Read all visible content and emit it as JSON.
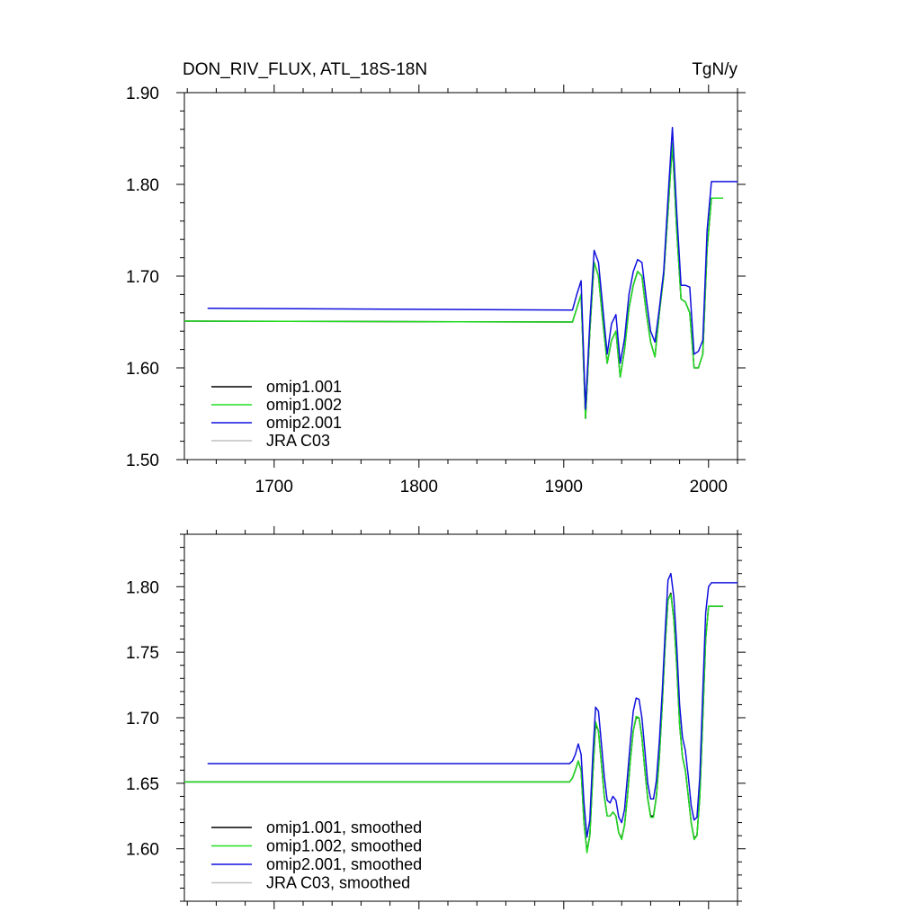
{
  "header": {
    "title": "DON_RIV_FLUX, ATL_18S-18N",
    "units": "TgN/y"
  },
  "colors": {
    "omip1_001": "#000000",
    "omip1_002": "#22dd22",
    "omip2_001": "#1010dd",
    "jra_c03": "#c0c0c0"
  },
  "chart_data": [
    {
      "type": "line",
      "title": "DON_RIV_FLUX, ATL_18S-18N",
      "units": "TgN/y",
      "xlim": [
        1638,
        2020
      ],
      "ylim": [
        1.5,
        1.9
      ],
      "xticks": [
        1700,
        1800,
        1900,
        2000
      ],
      "xtick_labels": [
        "1700",
        "1800",
        "1900",
        "2000"
      ],
      "yticks": [
        1.5,
        1.6,
        1.7,
        1.8,
        1.9
      ],
      "ytick_labels": [
        "1.50",
        "1.60",
        "1.70",
        "1.80",
        "1.90"
      ],
      "grid": false,
      "legend_position": "bottom-left",
      "series": [
        {
          "name": "omip1.001",
          "color": "#000000",
          "x": [
            1638,
            1906,
            1909,
            1912,
            1915,
            1918,
            1921,
            1924,
            1927,
            1930,
            1933,
            1936,
            1939,
            1942,
            1945,
            1948,
            1951,
            1954,
            1957,
            1960,
            1963,
            1966,
            1969,
            1972,
            1975,
            1978,
            1981,
            1984,
            1987,
            1990,
            1993,
            1996,
            1999,
            2002,
            2010
          ],
          "y": [
            1.651,
            1.65,
            1.665,
            1.68,
            1.545,
            1.64,
            1.715,
            1.7,
            1.65,
            1.605,
            1.63,
            1.64,
            1.59,
            1.62,
            1.665,
            1.69,
            1.705,
            1.7,
            1.66,
            1.628,
            1.612,
            1.66,
            1.7,
            1.77,
            1.845,
            1.75,
            1.675,
            1.672,
            1.66,
            1.6,
            1.6,
            1.615,
            1.73,
            1.785,
            1.785
          ]
        },
        {
          "name": "omip1.002",
          "color": "#22dd22",
          "x": [
            1638,
            1906,
            1909,
            1912,
            1915,
            1918,
            1921,
            1924,
            1927,
            1930,
            1933,
            1936,
            1939,
            1942,
            1945,
            1948,
            1951,
            1954,
            1957,
            1960,
            1963,
            1966,
            1969,
            1972,
            1975,
            1978,
            1981,
            1984,
            1987,
            1990,
            1993,
            1996,
            1999,
            2002,
            2010
          ],
          "y": [
            1.651,
            1.65,
            1.665,
            1.68,
            1.545,
            1.64,
            1.715,
            1.7,
            1.65,
            1.605,
            1.63,
            1.64,
            1.59,
            1.62,
            1.665,
            1.69,
            1.705,
            1.7,
            1.66,
            1.628,
            1.612,
            1.66,
            1.7,
            1.77,
            1.845,
            1.75,
            1.675,
            1.672,
            1.66,
            1.6,
            1.6,
            1.615,
            1.73,
            1.785,
            1.785
          ]
        },
        {
          "name": "omip2.001",
          "color": "#1010dd",
          "x": [
            1654,
            1906,
            1909,
            1912,
            1915,
            1918,
            1921,
            1924,
            1927,
            1930,
            1933,
            1936,
            1939,
            1942,
            1945,
            1948,
            1951,
            1954,
            1957,
            1960,
            1963,
            1966,
            1969,
            1972,
            1975,
            1978,
            1981,
            1984,
            1987,
            1990,
            1993,
            1996,
            1999,
            2002,
            2020
          ],
          "y": [
            1.665,
            1.663,
            1.68,
            1.695,
            1.555,
            1.65,
            1.728,
            1.715,
            1.665,
            1.615,
            1.648,
            1.658,
            1.605,
            1.632,
            1.68,
            1.705,
            1.718,
            1.715,
            1.675,
            1.64,
            1.628,
            1.665,
            1.705,
            1.785,
            1.862,
            1.77,
            1.69,
            1.69,
            1.688,
            1.615,
            1.618,
            1.63,
            1.75,
            1.803,
            1.803
          ]
        },
        {
          "name": "JRA C03",
          "color": "#c0c0c0",
          "x": [],
          "y": []
        }
      ]
    },
    {
      "type": "line",
      "title": "",
      "xlim": [
        1638,
        2020
      ],
      "ylim": [
        1.56,
        1.84
      ],
      "xticks": [
        1700,
        1800,
        1900,
        2000
      ],
      "xtick_labels": [],
      "yticks": [
        1.6,
        1.65,
        1.7,
        1.75,
        1.8
      ],
      "ytick_labels": [
        "1.60",
        "1.65",
        "1.70",
        "1.75",
        "1.80"
      ],
      "grid": false,
      "legend_position": "bottom-left",
      "series": [
        {
          "name": "omip1.001, smoothed",
          "color": "#000000",
          "x": [
            1638,
            1904,
            1906,
            1908,
            1910,
            1912,
            1914,
            1916,
            1918,
            1920,
            1922,
            1924,
            1926,
            1928,
            1930,
            1932,
            1934,
            1936,
            1938,
            1940,
            1942,
            1944,
            1946,
            1948,
            1950,
            1952,
            1954,
            1956,
            1958,
            1960,
            1962,
            1964,
            1966,
            1968,
            1970,
            1972,
            1974,
            1976,
            1978,
            1980,
            1982,
            1984,
            1986,
            1988,
            1990,
            1992,
            1994,
            1996,
            1998,
            2000,
            2002,
            2004,
            2010
          ],
          "y": [
            1.651,
            1.651,
            1.654,
            1.66,
            1.667,
            1.66,
            1.62,
            1.598,
            1.61,
            1.655,
            1.695,
            1.69,
            1.665,
            1.64,
            1.625,
            1.625,
            1.628,
            1.625,
            1.612,
            1.608,
            1.618,
            1.64,
            1.668,
            1.69,
            1.7,
            1.7,
            1.685,
            1.66,
            1.638,
            1.625,
            1.625,
            1.64,
            1.67,
            1.71,
            1.755,
            1.79,
            1.795,
            1.775,
            1.74,
            1.695,
            1.67,
            1.66,
            1.64,
            1.62,
            1.608,
            1.61,
            1.64,
            1.7,
            1.76,
            1.785,
            1.785,
            1.785,
            1.785
          ]
        },
        {
          "name": "omip1.002, smoothed",
          "color": "#22dd22",
          "x": [
            1638,
            1904,
            1906,
            1908,
            1910,
            1912,
            1914,
            1916,
            1918,
            1920,
            1922,
            1924,
            1926,
            1928,
            1930,
            1932,
            1934,
            1936,
            1938,
            1940,
            1942,
            1944,
            1946,
            1948,
            1950,
            1952,
            1954,
            1956,
            1958,
            1960,
            1962,
            1964,
            1966,
            1968,
            1970,
            1972,
            1974,
            1976,
            1978,
            1980,
            1982,
            1984,
            1986,
            1988,
            1990,
            1992,
            1994,
            1996,
            1998,
            2000,
            2002,
            2004,
            2010
          ],
          "y": [
            1.651,
            1.651,
            1.654,
            1.66,
            1.667,
            1.66,
            1.62,
            1.597,
            1.61,
            1.655,
            1.697,
            1.69,
            1.665,
            1.64,
            1.625,
            1.625,
            1.628,
            1.625,
            1.612,
            1.607,
            1.618,
            1.64,
            1.668,
            1.69,
            1.701,
            1.7,
            1.685,
            1.66,
            1.638,
            1.624,
            1.624,
            1.64,
            1.67,
            1.71,
            1.755,
            1.79,
            1.794,
            1.775,
            1.74,
            1.695,
            1.67,
            1.66,
            1.64,
            1.62,
            1.607,
            1.61,
            1.64,
            1.7,
            1.76,
            1.785,
            1.785,
            1.785,
            1.785
          ]
        },
        {
          "name": "omip2.001, smoothed",
          "color": "#1010dd",
          "x": [
            1654,
            1904,
            1906,
            1908,
            1910,
            1912,
            1914,
            1916,
            1918,
            1920,
            1922,
            1924,
            1926,
            1928,
            1930,
            1932,
            1934,
            1936,
            1938,
            1940,
            1942,
            1944,
            1946,
            1948,
            1950,
            1952,
            1954,
            1956,
            1958,
            1960,
            1962,
            1964,
            1966,
            1968,
            1970,
            1972,
            1974,
            1976,
            1978,
            1980,
            1982,
            1984,
            1986,
            1988,
            1990,
            1992,
            1994,
            1996,
            1998,
            2000,
            2002,
            2004,
            2020
          ],
          "y": [
            1.665,
            1.665,
            1.667,
            1.672,
            1.68,
            1.672,
            1.635,
            1.609,
            1.622,
            1.67,
            1.708,
            1.705,
            1.68,
            1.655,
            1.637,
            1.635,
            1.64,
            1.637,
            1.624,
            1.62,
            1.63,
            1.655,
            1.682,
            1.705,
            1.715,
            1.714,
            1.7,
            1.675,
            1.65,
            1.638,
            1.638,
            1.652,
            1.682,
            1.72,
            1.765,
            1.805,
            1.81,
            1.792,
            1.755,
            1.71,
            1.685,
            1.675,
            1.655,
            1.633,
            1.622,
            1.624,
            1.655,
            1.72,
            1.78,
            1.8,
            1.803,
            1.803,
            1.803
          ]
        },
        {
          "name": "JRA C03, smoothed",
          "color": "#c0c0c0",
          "x": [],
          "y": []
        }
      ]
    }
  ]
}
